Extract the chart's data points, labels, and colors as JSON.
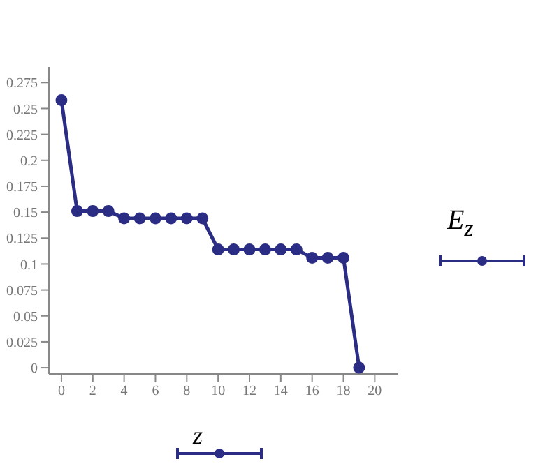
{
  "chart_data": {
    "type": "line",
    "xlabel": "z",
    "ylabel": "E$_{z}$",
    "x": [
      0,
      1,
      2,
      3,
      4,
      5,
      6,
      7,
      8,
      9,
      10,
      11,
      12,
      13,
      14,
      15,
      16,
      17,
      18,
      19
    ],
    "series": [
      {
        "color": "#2b2d84",
        "values": [
          0.258,
          0.151,
          0.151,
          0.151,
          0.144,
          0.144,
          0.144,
          0.144,
          0.144,
          0.144,
          0.114,
          0.114,
          0.114,
          0.114,
          0.114,
          0.114,
          0.106,
          0.106,
          0.106,
          0
        ]
      }
    ],
    "xlim": [
      -0.8,
      21.5
    ],
    "xticks": [
      0,
      2,
      4,
      6,
      8,
      10,
      12,
      14,
      16,
      18,
      20
    ],
    "ylim": [
      -0.006,
      0.29
    ],
    "yticks": [
      0,
      0.025,
      0.05,
      0.075,
      0.1,
      0.125,
      0.15,
      0.175,
      0.2,
      0.225,
      0.25,
      0.275
    ],
    "grid": false,
    "marker": "circle",
    "line_style": "solid"
  }
}
